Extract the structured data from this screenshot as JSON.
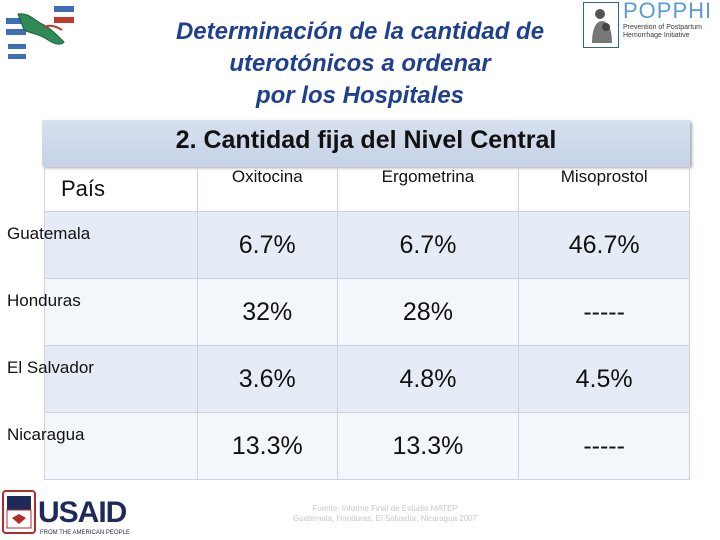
{
  "title": {
    "line1": "Determinación de la cantidad de",
    "line2": "uterotónicos a ordenar",
    "line3": "por los Hospitales"
  },
  "subtitle": "2. Cantidad fija del Nivel Central",
  "table": {
    "headers": [
      "País",
      "Oxitocina",
      "Ergometrina",
      "Misoprostol"
    ],
    "rows": [
      {
        "country": "Guatemala",
        "oxitocina": "6.7%",
        "ergometrina": "6.7%",
        "misoprostol": "46.7%"
      },
      {
        "country": "Honduras",
        "oxitocina": "32%",
        "ergometrina": "28%",
        "misoprostol": "-----"
      },
      {
        "country": "El Salvador",
        "oxitocina": "3.6%",
        "ergometrina": "4.8%",
        "misoprostol": "4.5%"
      },
      {
        "country": "Nicaragua",
        "oxitocina": "13.3%",
        "ergometrina": "13.3%",
        "misoprostol": "-----"
      }
    ]
  },
  "logos": {
    "poppphi": {
      "name": "POPPHI",
      "tagline": "Prevention of Postpartum Hemorrhage Initiative"
    },
    "usaid": {
      "name": "USAID",
      "subline": "FROM THE AMERICAN PEOPLE"
    }
  },
  "source": {
    "line1": "Fuente: Informe Final de Estudio MATEP",
    "line2": "Guatemala, Honduras, El Salvador, Nicaragua 2007"
  },
  "colors": {
    "title": "#1f3f8f",
    "subtitle_bg": "#c6d3e6",
    "row_dark": "#e6ecf5",
    "row_light": "#f3f6fb"
  }
}
